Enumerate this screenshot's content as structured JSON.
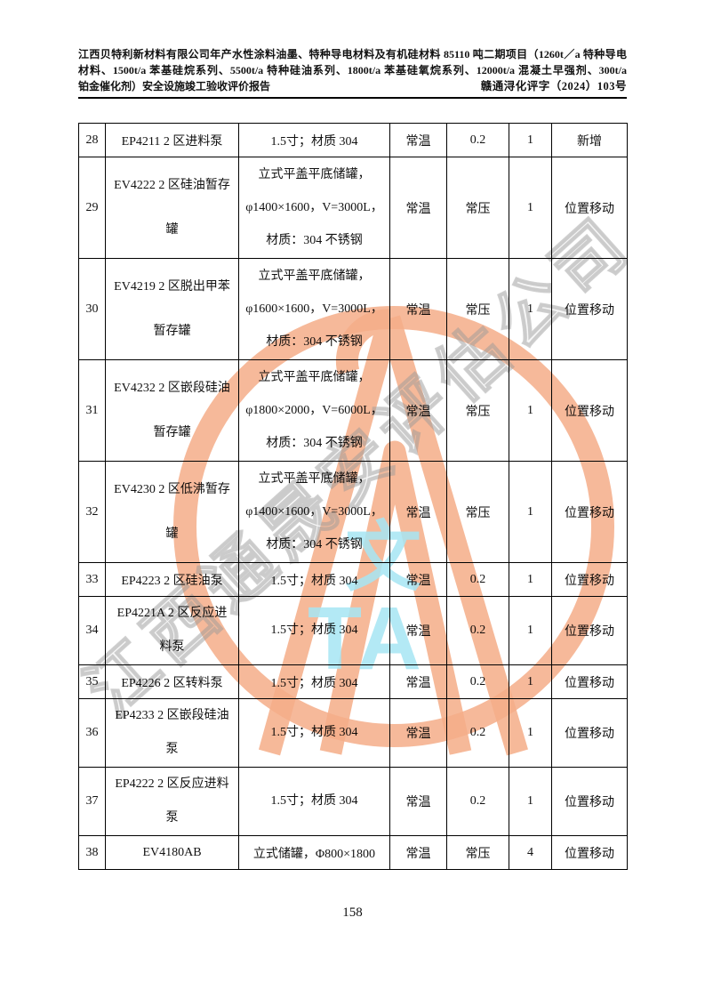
{
  "header": {
    "title_lines": [
      "江西贝特利新材料有限公司年产水性涂料油墨、特种导电材料及有机硅材料 85110 吨二期项目（1260t／a 特种导电",
      "材料、1500t/a 苯基硅烷系列、5500t/a 特种硅油系列、1800t/a 苯基硅氧烷系列、12000t/a 混凝土早强剂、300t/a",
      "铂金催化剂）安全设施竣工验收评价报告"
    ],
    "doc_number": "赣通浔化评字（2024）103号"
  },
  "table": {
    "rows": [
      {
        "seq": "28",
        "size": "s",
        "name_lines": [
          "EP4211 2 区进料泵"
        ],
        "spec_lines": [
          "1.5寸；材质 304"
        ],
        "temp": "常温",
        "press": "0.2",
        "qty": "1",
        "remark": "新增"
      },
      {
        "seq": "29",
        "size": "t",
        "name_lines": [
          "EV4222 2 区硅油暂存",
          "罐"
        ],
        "spec_lines": [
          "立式平盖平底储罐，",
          "φ1400×1600，V=3000L，",
          "材质：304 不锈钢"
        ],
        "temp": "常温",
        "press": "常压",
        "qty": "1",
        "remark": "位置移动"
      },
      {
        "seq": "30",
        "size": "t",
        "name_lines": [
          "EV4219 2 区脱出甲苯",
          "暂存罐"
        ],
        "spec_lines": [
          "立式平盖平底储罐，",
          "φ1600×1600，V=3000L，",
          "材质：304 不锈钢"
        ],
        "temp": "常温",
        "press": "常压",
        "qty": "1",
        "remark": "位置移动"
      },
      {
        "seq": "31",
        "size": "t",
        "name_lines": [
          "EV4232 2 区嵌段硅油",
          "暂存罐"
        ],
        "spec_lines": [
          "立式平盖平底储罐，",
          "φ1800×2000，V=6000L，",
          "材质：304 不锈钢"
        ],
        "temp": "常温",
        "press": "常压",
        "qty": "1",
        "remark": "位置移动"
      },
      {
        "seq": "32",
        "size": "t",
        "name_lines": [
          "EV4230 2 区低沸暂存",
          "罐"
        ],
        "spec_lines": [
          "立式平盖平底储罐，",
          "φ1400×1600，V=3000L，",
          "材质：304 不锈钢"
        ],
        "temp": "常温",
        "press": "常压",
        "qty": "1",
        "remark": "位置移动"
      },
      {
        "seq": "33",
        "size": "s",
        "name_lines": [
          "EP4223 2 区硅油泵"
        ],
        "spec_lines": [
          "1.5寸；材质 304"
        ],
        "temp": "常温",
        "press": "0.2",
        "qty": "1",
        "remark": "位置移动"
      },
      {
        "seq": "34",
        "size": "m",
        "name_lines": [
          "EP4221A 2 区反应进",
          "料泵"
        ],
        "spec_lines": [
          "1.5寸；材质 304"
        ],
        "temp": "常温",
        "press": "0.2",
        "qty": "1",
        "remark": "位置移动"
      },
      {
        "seq": "35",
        "size": "s",
        "name_lines": [
          "EP4226 2 区转料泵"
        ],
        "spec_lines": [
          "1.5寸；材质 304"
        ],
        "temp": "常温",
        "press": "0.2",
        "qty": "1",
        "remark": "位置移动"
      },
      {
        "seq": "36",
        "size": "m",
        "name_lines": [
          "EP4233 2 区嵌段硅油",
          "泵"
        ],
        "spec_lines": [
          "1.5寸；材质 304"
        ],
        "temp": "常温",
        "press": "0.2",
        "qty": "1",
        "remark": "位置移动"
      },
      {
        "seq": "37",
        "size": "m",
        "name_lines": [
          "EP4222 2 区反应进料",
          "泵"
        ],
        "spec_lines": [
          "1.5寸；材质 304"
        ],
        "temp": "常温",
        "press": "0.2",
        "qty": "1",
        "remark": "位置移动"
      },
      {
        "seq": "38",
        "size": "s",
        "name_lines": [
          "EV4180AB"
        ],
        "spec_lines": [
          "立式储罐，Φ800×1800"
        ],
        "temp": "常温",
        "press": "常压",
        "qty": "4",
        "remark": "位置移动"
      }
    ]
  },
  "watermark": {
    "diagonal_text": "江西通晟安评估公司",
    "wen": "文",
    "ta": "TA",
    "stamp_color": "#f5ad88",
    "cyan_color": "#a6e6f4",
    "gray_color": "#999999"
  },
  "footer": {
    "page_number": "158"
  }
}
